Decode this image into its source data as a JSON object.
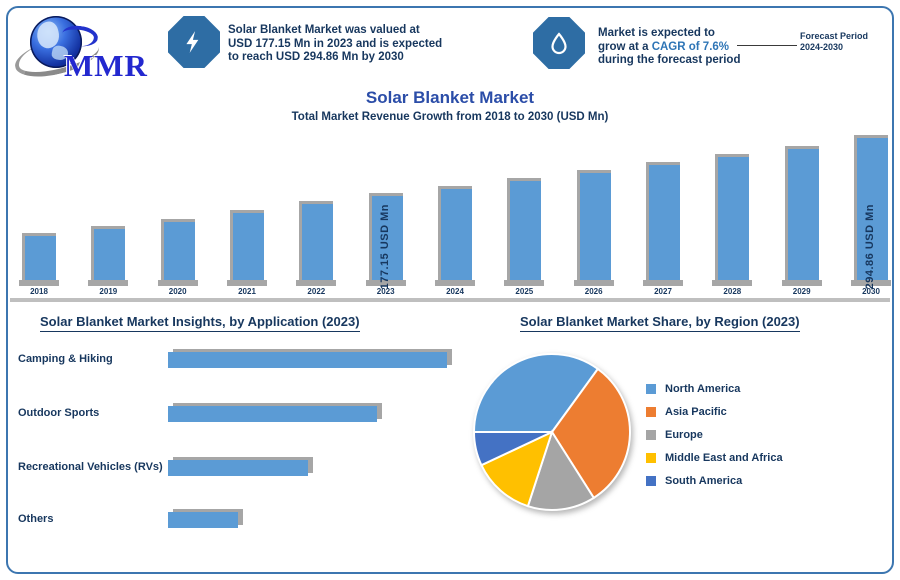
{
  "logo": {
    "text": "MMR"
  },
  "header": {
    "stat1": {
      "icon": "lightning-icon",
      "lines": [
        "Solar Blanket Market was valued at",
        "USD 177.15 Mn in 2023 and is expected",
        "to reach USD 294.86 Mn by 2030"
      ]
    },
    "stat2": {
      "icon": "water-drop-icon",
      "line1": "Market is expected to",
      "line2_pre": "grow at a ",
      "line2_highlight": "CAGR of 7.6%",
      "line3": "during the forecast period",
      "callout_line1": "Forecast Period",
      "callout_line2": "2024-2030"
    }
  },
  "main": {
    "title": "Solar Blanket Market",
    "subtitle": "Total Market Revenue Growth from 2018 to 2030 (USD Mn)"
  },
  "sections": {
    "left_title": "Solar Blanket Market Insights, by Application (2023)",
    "right_title": "Solar Blanket Market Share, by Region (2023)"
  },
  "colors": {
    "bar_blue": "#5B9BD5",
    "shadow_grey": "#A6A6A6",
    "axis_grey": "#BFBFBF",
    "navy_text": "#17375E",
    "title_blue": "#2B4DA8",
    "highlight_blue": "#2E75B6",
    "badge_blue": "#2E6DA4",
    "pie_palette": [
      "#5B9BD5",
      "#ED7D31",
      "#A5A5A5",
      "#FFC000",
      "#4472C4"
    ]
  },
  "chart_data": [
    {
      "type": "bar",
      "title": "Solar Blanket Market",
      "ylabel": "USD Mn",
      "categories": [
        "2018",
        "2019",
        "2020",
        "2021",
        "2022",
        "2023",
        "2024",
        "2025",
        "2026",
        "2027",
        "2028",
        "2029",
        "2030"
      ],
      "values": [
        96,
        110,
        125,
        143,
        161,
        177.15,
        190.5,
        207,
        223,
        239,
        257,
        273.5,
        294.86
      ],
      "value_labels": {
        "2023": "177.15 USD Mn",
        "2030": "294.86 USD Mn"
      },
      "ylim": [
        0,
        294.86
      ],
      "grid": false,
      "legend_position": "none"
    },
    {
      "type": "bar",
      "orientation": "horizontal",
      "title": "Solar Blanket Market Insights, by Application (2023)",
      "categories": [
        "Camping & Hiking",
        "Outdoor Sports",
        "Recreational Vehicles (RVs)",
        "Others"
      ],
      "values": [
        40,
        30,
        20,
        10
      ],
      "unit": "%",
      "xlim": [
        0,
        40
      ],
      "grid": false,
      "legend_position": "none"
    },
    {
      "type": "pie",
      "title": "Solar Blanket Market Share, by Region (2023)",
      "labels": [
        "North America",
        "Asia Pacific",
        "Europe",
        "Middle East and Africa",
        "South America"
      ],
      "values": [
        35,
        31,
        14,
        13,
        7
      ],
      "unit": "%",
      "start_angle_deg": -90,
      "legend_position": "right"
    }
  ]
}
